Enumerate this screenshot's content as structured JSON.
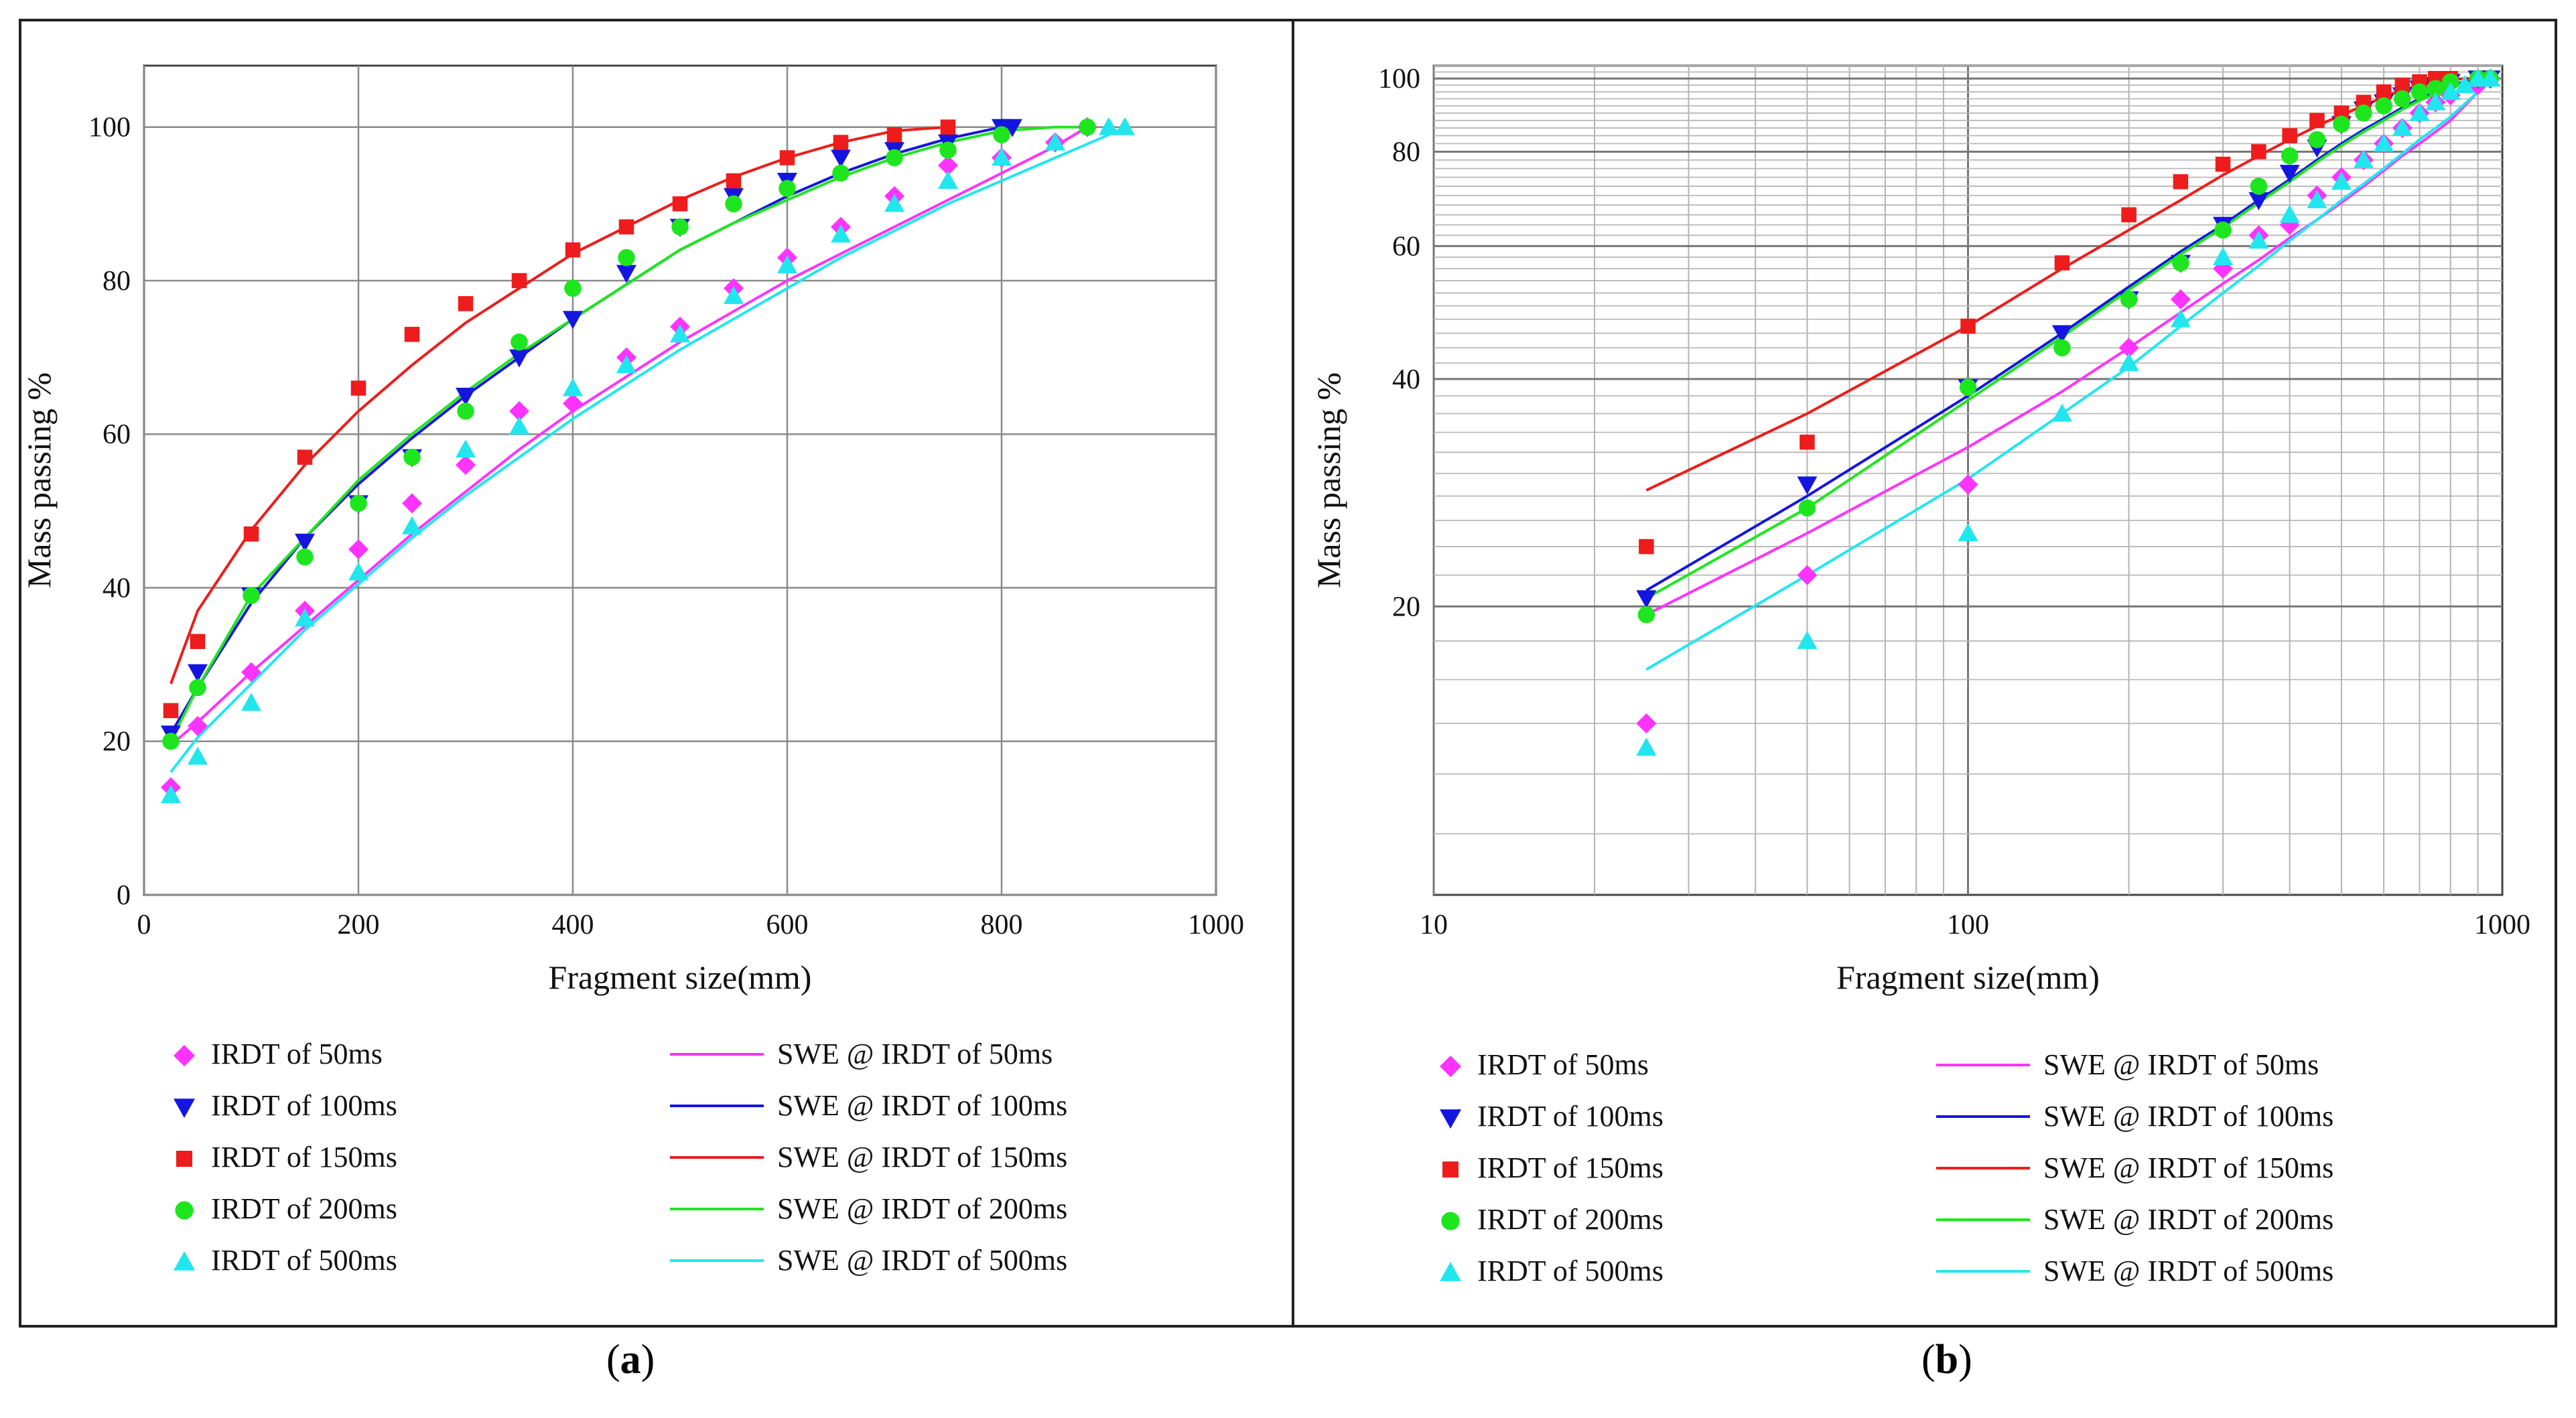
{
  "colors": {
    "IRDT of 50ms": "#ff33ff",
    "IRDT of 100ms": "#1515e0",
    "IRDT of 150ms": "#ee1c1c",
    "IRDT of 200ms": "#1ee61e",
    "IRDT of 500ms": "#22e6ee"
  },
  "captions": {
    "a": "a",
    "b": "b"
  },
  "chart_data": [
    {
      "id": "a",
      "type": "scatter",
      "xscale": "linear",
      "xlabel": "Fragment size(mm)",
      "ylabel": "Mass passing %",
      "xlim": [
        0,
        1000
      ],
      "ylim": [
        0,
        108
      ],
      "xticks": [
        "0",
        "200",
        "400",
        "600",
        "800",
        "1000"
      ],
      "yticks": [
        "0",
        "20",
        "40",
        "60",
        "80",
        "100"
      ],
      "grid": true,
      "legend_position": "bottom",
      "series": [
        {
          "name": "IRDT of 50ms",
          "marker": "diamond",
          "x": [
            25,
            50,
            100,
            150,
            200,
            250,
            300,
            350,
            400,
            450,
            500,
            550,
            600,
            650,
            700,
            750,
            800,
            850,
            880
          ],
          "y": [
            14,
            22,
            29,
            37,
            45,
            51,
            56,
            63,
            64,
            70,
            74,
            79,
            83,
            87,
            91,
            95,
            96,
            98,
            100
          ]
        },
        {
          "name": "IRDT of 100ms",
          "marker": "triangle-down",
          "x": [
            25,
            50,
            100,
            150,
            200,
            250,
            300,
            350,
            400,
            450,
            500,
            550,
            600,
            650,
            700,
            750,
            800,
            810
          ],
          "y": [
            21,
            29,
            39,
            46,
            51,
            57,
            65,
            70,
            75,
            81,
            87,
            91,
            93,
            96,
            97,
            98,
            100,
            100
          ]
        },
        {
          "name": "IRDT of 150ms",
          "marker": "square",
          "x": [
            25,
            50,
            100,
            150,
            200,
            250,
            300,
            350,
            400,
            450,
            500,
            550,
            600,
            650,
            700,
            750
          ],
          "y": [
            24,
            33,
            47,
            57,
            66,
            73,
            77,
            80,
            84,
            87,
            90,
            93,
            96,
            98,
            99,
            100
          ]
        },
        {
          "name": "IRDT of 200ms",
          "marker": "circle",
          "x": [
            25,
            50,
            100,
            150,
            200,
            250,
            300,
            350,
            400,
            450,
            500,
            550,
            600,
            650,
            700,
            750,
            800,
            880
          ],
          "y": [
            20,
            27,
            39,
            44,
            51,
            57,
            63,
            72,
            79,
            83,
            87,
            90,
            92,
            94,
            96,
            97,
            99,
            100
          ]
        },
        {
          "name": "IRDT of 500ms",
          "marker": "triangle-up",
          "x": [
            25,
            50,
            100,
            150,
            200,
            250,
            300,
            350,
            400,
            450,
            500,
            550,
            600,
            650,
            700,
            750,
            800,
            850,
            900,
            915
          ],
          "y": [
            13,
            18,
            25,
            36,
            42,
            48,
            58,
            61,
            66,
            69,
            73,
            78,
            82,
            86,
            90,
            93,
            96,
            98,
            100,
            100
          ]
        }
      ],
      "fits": [
        {
          "name": "SWE @ IRDT of 50ms",
          "x": [
            25,
            50,
            100,
            150,
            200,
            250,
            300,
            350,
            400,
            450,
            500,
            550,
            600,
            650,
            700,
            750,
            800,
            850,
            880
          ],
          "y": [
            19.5,
            22.5,
            29,
            35,
            41,
            47,
            52.5,
            58,
            63,
            67.5,
            72,
            76,
            80,
            83.5,
            87,
            90.5,
            94,
            97.5,
            100
          ]
        },
        {
          "name": "SWE @ IRDT of 100ms",
          "x": [
            25,
            50,
            100,
            150,
            200,
            250,
            300,
            350,
            400,
            450,
            500,
            550,
            600,
            650,
            700,
            750,
            800,
            810
          ],
          "y": [
            21,
            27,
            38,
            46.5,
            53.5,
            59.5,
            65,
            70,
            75,
            79.5,
            84,
            87.5,
            91,
            94,
            96.5,
            98.5,
            100,
            100
          ]
        },
        {
          "name": "SWE @ IRDT of 150ms",
          "x": [
            25,
            50,
            100,
            150,
            200,
            250,
            300,
            350,
            400,
            450,
            500,
            550,
            600,
            650,
            700,
            750
          ],
          "y": [
            27.5,
            37,
            47.5,
            56,
            63,
            69,
            74.5,
            79,
            83.5,
            87,
            90.5,
            93.5,
            96,
            98,
            99.5,
            100
          ]
        },
        {
          "name": "SWE @ IRDT of 200ms",
          "x": [
            25,
            50,
            100,
            150,
            200,
            250,
            300,
            350,
            400,
            450,
            500,
            550,
            600,
            650,
            700,
            750,
            800,
            850,
            880
          ],
          "y": [
            20,
            27,
            39,
            46.5,
            54,
            60,
            65.5,
            70.5,
            75,
            79.5,
            84,
            87.5,
            90.5,
            93.5,
            96,
            98,
            99.5,
            100,
            100
          ]
        },
        {
          "name": "SWE @ IRDT of 500ms",
          "x": [
            25,
            50,
            100,
            150,
            200,
            250,
            300,
            350,
            400,
            450,
            500,
            550,
            600,
            650,
            700,
            750,
            800,
            850,
            900,
            915
          ],
          "y": [
            16,
            20.5,
            27.5,
            34.5,
            40.5,
            46.5,
            52,
            57,
            62,
            66.5,
            71,
            75,
            79,
            83,
            86.5,
            90,
            93,
            96,
            99,
            100
          ]
        }
      ]
    },
    {
      "id": "b",
      "type": "scatter",
      "xscale": "log",
      "yscale": "log",
      "xlabel": "Fragment size(mm)",
      "ylabel": "Mass passing %",
      "xlim": [
        10,
        1000
      ],
      "ylim": [
        8.3,
        104
      ],
      "xticks": [
        "10",
        "100",
        "1000"
      ],
      "yticks": [
        "20",
        "40",
        "60",
        "80",
        "100"
      ],
      "grid": true,
      "legend_position": "bottom",
      "series": [
        {
          "name": "IRDT of 50ms",
          "marker": "diamond",
          "x": [
            25,
            50,
            100,
            200,
            250,
            300,
            350,
            400,
            450,
            500,
            550,
            600,
            650,
            700,
            750,
            800,
            900,
            950
          ],
          "y": [
            14,
            22,
            29,
            44,
            51,
            56,
            62,
            64,
            70,
            74,
            78,
            82,
            86,
            90,
            93,
            95,
            98,
            100
          ]
        },
        {
          "name": "IRDT of 100ms",
          "marker": "triangle-down",
          "x": [
            25,
            50,
            100,
            150,
            200,
            250,
            300,
            350,
            400,
            450,
            500,
            550,
            600,
            650,
            700,
            750,
            800,
            900,
            950
          ],
          "y": [
            20.5,
            29,
            39,
            46,
            51,
            57,
            64,
            69,
            75,
            81,
            87,
            91,
            93,
            95,
            97,
            98,
            99,
            100,
            100
          ]
        },
        {
          "name": "IRDT of 150ms",
          "marker": "square",
          "x": [
            25,
            50,
            100,
            150,
            200,
            250,
            300,
            350,
            400,
            450,
            500,
            550,
            600,
            650,
            700,
            750,
            800
          ],
          "y": [
            24,
            33,
            47,
            57,
            66,
            73,
            77,
            80,
            84,
            88,
            90,
            93,
            96,
            98,
            99,
            100,
            100
          ]
        },
        {
          "name": "IRDT of 200ms",
          "marker": "circle",
          "x": [
            25,
            50,
            100,
            150,
            200,
            250,
            300,
            350,
            400,
            450,
            500,
            550,
            600,
            650,
            700,
            750,
            800,
            900,
            950
          ],
          "y": [
            19.5,
            27,
            39,
            44,
            51,
            57,
            63,
            72,
            79,
            83,
            87,
            90,
            92,
            94,
            96,
            97,
            99,
            100,
            100
          ]
        },
        {
          "name": "IRDT of 500ms",
          "marker": "triangle-up",
          "x": [
            25,
            50,
            100,
            150,
            200,
            250,
            300,
            350,
            400,
            450,
            500,
            550,
            600,
            650,
            700,
            750,
            800,
            850,
            900,
            950
          ],
          "y": [
            13,
            18,
            25,
            36,
            42,
            48,
            58,
            61,
            66,
            69,
            73,
            78,
            82,
            86,
            90,
            93,
            96,
            98,
            100,
            100
          ]
        }
      ],
      "fits": [
        {
          "name": "SWE @ IRDT of 50ms",
          "x": [
            25,
            50,
            100,
            150,
            200,
            250,
            300,
            350,
            400,
            450,
            500,
            550,
            600,
            650,
            700,
            750,
            800,
            850,
            900,
            950
          ],
          "y": [
            19.5,
            25,
            32.5,
            38.5,
            44,
            49,
            53.5,
            57.5,
            61.5,
            65,
            68.5,
            72,
            75.5,
            79,
            82,
            85,
            88,
            92,
            96,
            100
          ]
        },
        {
          "name": "SWE @ IRDT of 100ms",
          "x": [
            25,
            50,
            100,
            150,
            200,
            250,
            300,
            350,
            400,
            450,
            500,
            550,
            600,
            650,
            700,
            750,
            800,
            850,
            900,
            950
          ],
          "y": [
            21,
            28,
            38,
            46,
            53,
            59,
            64,
            69,
            73.5,
            78,
            82,
            85.5,
            88.5,
            91.5,
            94,
            96,
            98,
            99,
            99.5,
            100
          ]
        },
        {
          "name": "SWE @ IRDT of 150ms",
          "x": [
            25,
            50,
            100,
            150,
            200,
            250,
            300,
            350,
            400,
            450,
            500,
            550,
            600,
            650,
            700,
            750,
            800,
            850,
            900,
            950
          ],
          "y": [
            28.5,
            36,
            47,
            56,
            63,
            69,
            74.5,
            79,
            83,
            86.5,
            89.5,
            92,
            94.5,
            96.5,
            98,
            99,
            99.5,
            100,
            100,
            100
          ]
        },
        {
          "name": "SWE @ IRDT of 200ms",
          "x": [
            25,
            50,
            100,
            150,
            200,
            250,
            300,
            350,
            400,
            450,
            500,
            550,
            600,
            650,
            700,
            750,
            800,
            850,
            900,
            950
          ],
          "y": [
            20.5,
            27,
            37.5,
            45.5,
            52.5,
            58.5,
            63.5,
            68.5,
            73,
            77.5,
            81.5,
            85,
            88,
            91,
            93.5,
            95.5,
            97.5,
            98.5,
            99.5,
            100
          ]
        },
        {
          "name": "SWE @ IRDT of 500ms",
          "x": [
            25,
            50,
            100,
            150,
            200,
            250,
            300,
            350,
            400,
            450,
            500,
            550,
            600,
            650,
            700,
            750,
            800,
            850,
            900,
            950
          ],
          "y": [
            16.5,
            22,
            29.5,
            36,
            41.5,
            47,
            52,
            56.5,
            61,
            65,
            69,
            72.5,
            76,
            79.5,
            83,
            86,
            89,
            92.5,
            96,
            100
          ]
        }
      ]
    }
  ]
}
